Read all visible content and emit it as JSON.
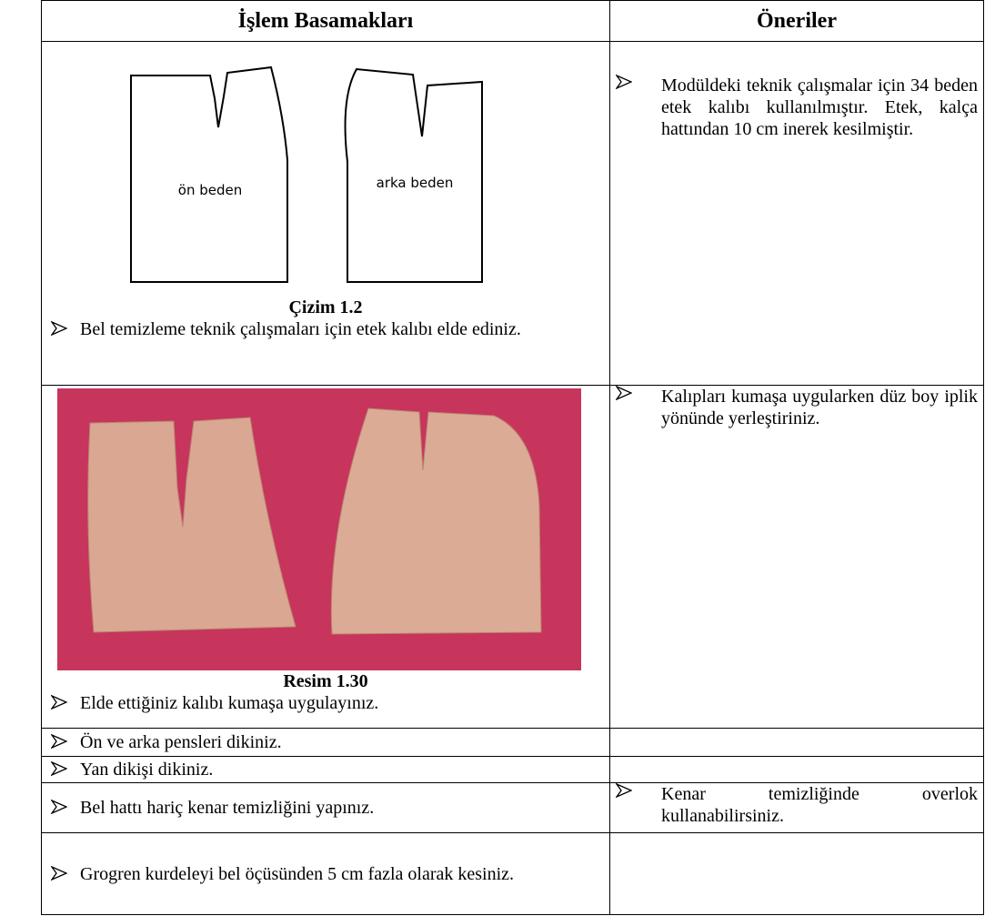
{
  "header": {
    "left": "İşlem Basamakları",
    "right": "Öneriler"
  },
  "rows": [
    {
      "figure": {
        "kind": "drawing",
        "labels": [
          "ön beden",
          "arka beden"
        ],
        "caption": "Çizim 1.2"
      },
      "steps": [
        "Bel temizleme teknik çalışmaları için etek kalıbı elde ediniz."
      ],
      "tips": [
        "Modüldeki teknik çalışmalar için 34 beden etek kalıbı kullanılmıştır. Etek, kalça hattından 10 cm inerek kesilmiştir."
      ]
    },
    {
      "figure": {
        "kind": "photo",
        "caption": "Resim 1.30"
      },
      "steps": [
        "Elde ettiğiniz kalıbı kumaşa uygulayınız."
      ],
      "tips": [
        "Kalıpları kumaşa uygularken düz boy iplik yönünde yerleştiriniz."
      ]
    },
    {
      "steps": [
        "Ön ve arka pensleri dikiniz."
      ],
      "tips": []
    },
    {
      "steps": [
        "Yan dikişi dikiniz."
      ],
      "tips": []
    },
    {
      "steps": [
        "Bel hattı hariç kenar temizliğini yapınız."
      ],
      "tips": [
        "Kenar temizliğinde overlok kullanabilirsiniz."
      ]
    },
    {
      "steps": [
        "Grogren kurdeleyi bel öçüsünden 5 cm fazla olarak kesiniz."
      ],
      "tips": []
    }
  ]
}
